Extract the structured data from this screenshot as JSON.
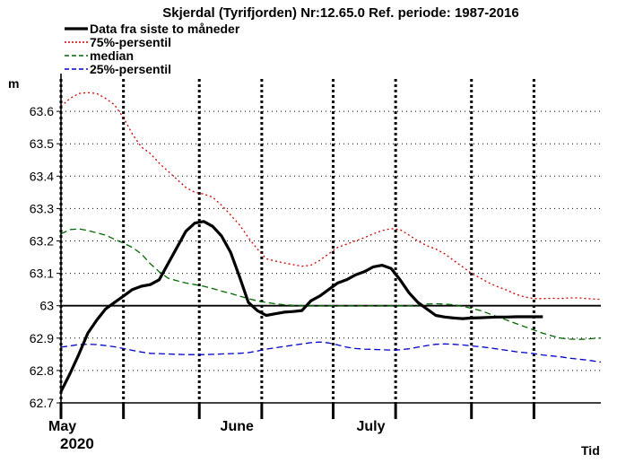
{
  "chart_data": {
    "type": "line",
    "title": "Skjerdal (Tyrifjorden) Nr:12.65.0 Ref. periode: 1987-2016",
    "ylabel": "m",
    "xlabel": "Tid",
    "ylim": [
      62.7,
      63.7
    ],
    "yticks": [
      "62.7",
      "62.8",
      "62.9",
      "63",
      "63.1",
      "63.2",
      "63.3",
      "63.4",
      "63.5",
      "63.6"
    ],
    "x_unit": "day of year 2020",
    "xlim": [
      122,
      243
    ],
    "months": [
      {
        "label": "May",
        "x": 122
      },
      {
        "label": "June",
        "x": 153
      },
      {
        "label": "July",
        "x": 183
      }
    ],
    "year_label": "2020",
    "vertical_grid_x": [
      122,
      136,
      153,
      167,
      183,
      197,
      214,
      228
    ],
    "grid": true,
    "legend_position": "top-left",
    "series": [
      {
        "name": "Data fra siste to måneder",
        "color": "#000000",
        "style": "solid",
        "x": [
          122,
          124,
          126,
          128,
          130,
          132,
          134,
          136,
          138,
          140,
          142,
          144,
          146,
          148,
          150,
          152,
          154,
          156,
          158,
          160,
          162,
          164,
          166,
          168,
          170,
          172,
          174,
          176,
          178,
          180,
          182,
          184,
          186,
          188,
          190,
          192,
          194,
          196,
          198,
          200,
          202,
          204,
          206,
          208,
          210,
          212,
          214,
          216,
          218,
          220,
          222,
          224,
          226,
          228,
          230
        ],
        "values": [
          62.735,
          62.79,
          62.85,
          62.915,
          62.955,
          62.99,
          63.01,
          63.03,
          63.05,
          63.06,
          63.065,
          63.08,
          63.13,
          63.18,
          63.23,
          63.255,
          63.26,
          63.245,
          63.215,
          63.165,
          63.09,
          63.01,
          62.985,
          62.97,
          62.975,
          62.98,
          62.982,
          62.985,
          63.015,
          63.03,
          63.05,
          63.07,
          63.08,
          63.095,
          63.105,
          63.12,
          63.125,
          63.115,
          63.08,
          63.04,
          63.01,
          62.99,
          62.97,
          62.965,
          62.962,
          62.96,
          62.962,
          62.963,
          62.964,
          62.965,
          62.965,
          62.966,
          62.966,
          62.966,
          62.966
        ]
      },
      {
        "name": "75%-persentil",
        "color": "#cc0000",
        "style": "dotted",
        "x": [
          122,
          124,
          126,
          128,
          130,
          132,
          134,
          136,
          138,
          140,
          142,
          144,
          146,
          148,
          150,
          152,
          154,
          156,
          158,
          160,
          162,
          164,
          166,
          168,
          170,
          172,
          174,
          176,
          178,
          180,
          182,
          184,
          186,
          188,
          190,
          192,
          194,
          196,
          198,
          200,
          202,
          204,
          206,
          208,
          210,
          212,
          214,
          216,
          218,
          220,
          222,
          224,
          226,
          228,
          230,
          232,
          234,
          236,
          238,
          240,
          242,
          243
        ],
        "values": [
          63.615,
          63.64,
          63.655,
          63.658,
          63.655,
          63.64,
          63.62,
          63.58,
          63.53,
          63.49,
          63.47,
          63.44,
          63.415,
          63.39,
          63.365,
          63.35,
          63.345,
          63.335,
          63.31,
          63.28,
          63.25,
          63.21,
          63.175,
          63.145,
          63.138,
          63.132,
          63.127,
          63.122,
          63.125,
          63.14,
          63.16,
          63.18,
          63.19,
          63.2,
          63.21,
          63.222,
          63.232,
          63.238,
          63.235,
          63.218,
          63.2,
          63.185,
          63.175,
          63.16,
          63.14,
          63.12,
          63.1,
          63.085,
          63.07,
          63.058,
          63.048,
          63.035,
          63.027,
          63.022,
          63.022,
          63.023,
          63.022,
          63.024,
          63.024,
          63.022,
          63.02,
          63.02
        ]
      },
      {
        "name": "median",
        "color": "#006600",
        "style": "dashed",
        "x": [
          122,
          124,
          126,
          128,
          130,
          132,
          134,
          136,
          138,
          140,
          142,
          144,
          146,
          148,
          150,
          152,
          154,
          156,
          158,
          160,
          162,
          164,
          166,
          168,
          170,
          172,
          174,
          176,
          178,
          180,
          182,
          184,
          186,
          188,
          190,
          192,
          194,
          196,
          198,
          200,
          202,
          204,
          206,
          208,
          210,
          212,
          214,
          216,
          218,
          220,
          222,
          224,
          226,
          228,
          230,
          232,
          234,
          236,
          238,
          240,
          242,
          243
        ],
        "values": [
          63.222,
          63.235,
          63.237,
          63.232,
          63.225,
          63.218,
          63.205,
          63.193,
          63.18,
          63.16,
          63.13,
          63.105,
          63.085,
          63.077,
          63.07,
          63.065,
          63.06,
          63.053,
          63.045,
          63.038,
          63.03,
          63.022,
          63.015,
          63.01,
          63.006,
          63.003,
          63.001,
          63.0,
          63.0,
          63.0,
          63.0,
          63.0,
          63.0,
          63.0,
          63.0,
          63.0,
          63.0,
          63.0,
          63.0,
          63.0,
          63.002,
          63.005,
          63.006,
          63.005,
          63.003,
          62.998,
          62.992,
          62.985,
          62.975,
          62.965,
          62.955,
          62.945,
          62.935,
          62.925,
          62.915,
          62.907,
          62.9,
          62.897,
          62.896,
          62.897,
          62.9,
          62.9
        ]
      },
      {
        "name": "25%-persentil",
        "color": "#0000cc",
        "style": "dashed",
        "x": [
          122,
          124,
          126,
          128,
          130,
          132,
          134,
          136,
          138,
          140,
          142,
          144,
          146,
          148,
          150,
          152,
          154,
          156,
          158,
          160,
          162,
          164,
          166,
          168,
          170,
          172,
          174,
          176,
          178,
          180,
          182,
          184,
          186,
          188,
          190,
          192,
          194,
          196,
          198,
          200,
          202,
          204,
          206,
          208,
          210,
          212,
          214,
          216,
          218,
          220,
          222,
          224,
          226,
          228,
          230,
          232,
          234,
          236,
          238,
          240,
          242,
          243
        ],
        "values": [
          62.872,
          62.876,
          62.88,
          62.881,
          62.88,
          62.877,
          62.873,
          62.868,
          62.862,
          62.857,
          62.853,
          62.852,
          62.851,
          62.85,
          62.849,
          62.849,
          62.849,
          62.85,
          62.851,
          62.852,
          62.853,
          62.855,
          62.86,
          62.866,
          62.87,
          62.874,
          62.878,
          62.882,
          62.886,
          62.888,
          62.885,
          62.879,
          62.872,
          62.868,
          62.866,
          62.865,
          62.864,
          62.863,
          62.864,
          62.867,
          62.872,
          62.877,
          62.881,
          62.882,
          62.881,
          62.879,
          62.876,
          62.873,
          62.87,
          62.866,
          62.862,
          62.858,
          62.855,
          62.852,
          62.848,
          62.845,
          62.842,
          62.838,
          62.835,
          62.832,
          62.828,
          62.826
        ]
      }
    ]
  }
}
